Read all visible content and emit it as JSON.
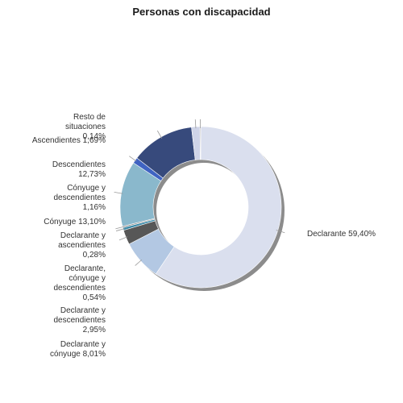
{
  "chart_data": {
    "type": "pie",
    "title": "Personas con discapacidad",
    "slices": [
      {
        "label": "Declarante",
        "value": 59.4,
        "display": "59,40%",
        "color": "#dadfee"
      },
      {
        "label": "Declarante y cónyuge",
        "value": 8.01,
        "display": "8,01%",
        "color": "#b3c8e3"
      },
      {
        "label": "Declarante y descendientes",
        "value": 2.95,
        "display": "2,95%",
        "color": "#575757"
      },
      {
        "label": "Declarante, cónyuge y descendientes",
        "value": 0.54,
        "display": "0,54%",
        "color": "#3c8aa8"
      },
      {
        "label": "Declarante y ascendientes",
        "value": 0.28,
        "display": "0,28%",
        "color": "#8a8a8a"
      },
      {
        "label": "Cónyuge",
        "value": 13.1,
        "display": "13,10%",
        "color": "#8ab8cc"
      },
      {
        "label": "Cónyuge y descendientes",
        "value": 1.16,
        "display": "1,16%",
        "color": "#3f63c2"
      },
      {
        "label": "Descendientes",
        "value": 12.73,
        "display": "12,73%",
        "color": "#374a7c"
      },
      {
        "label": "Ascendientes",
        "value": 1.69,
        "display": "1,69%",
        "color": "#cfd4e8"
      },
      {
        "label": "Resto de situaciones",
        "value": 0.14,
        "display": "0,14%",
        "color": "#6b6b6b"
      }
    ],
    "legend": "none (labels placed beside slices)"
  }
}
